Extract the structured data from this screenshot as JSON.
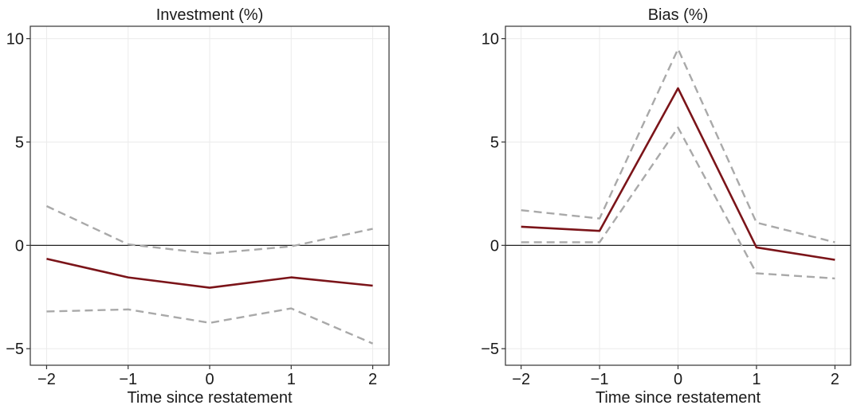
{
  "chart_data": [
    {
      "type": "line",
      "title": "Investment (%)",
      "xlabel": "Time since restatement",
      "ylabel": "",
      "x": [
        -2,
        -1,
        0,
        1,
        2
      ],
      "xlim": [
        -2.2,
        2.2
      ],
      "ylim": [
        -5.8,
        10.6
      ],
      "xticks": [
        -2,
        -1,
        0,
        1,
        2
      ],
      "yticks": [
        -5,
        0,
        5,
        10
      ],
      "grid": true,
      "reference_line_y": 0,
      "series": [
        {
          "role": "estimate",
          "style": "solid",
          "color": "#7b1419",
          "values": [
            -0.65,
            -1.55,
            -2.05,
            -1.55,
            -1.95
          ]
        },
        {
          "role": "upper",
          "style": "dashed",
          "color": "#a9a9a9",
          "values": [
            1.9,
            0.05,
            -0.4,
            -0.05,
            0.8
          ]
        },
        {
          "role": "lower",
          "style": "dashed",
          "color": "#a9a9a9",
          "values": [
            -3.2,
            -3.1,
            -3.75,
            -3.05,
            -4.75
          ]
        }
      ]
    },
    {
      "type": "line",
      "title": "Bias (%)",
      "xlabel": "Time since restatement",
      "ylabel": "",
      "x": [
        -2,
        -1,
        0,
        1,
        2
      ],
      "xlim": [
        -2.2,
        2.2
      ],
      "ylim": [
        -5.8,
        10.6
      ],
      "xticks": [
        -2,
        -1,
        0,
        1,
        2
      ],
      "yticks": [
        -5,
        0,
        5,
        10
      ],
      "grid": true,
      "reference_line_y": 0,
      "series": [
        {
          "role": "estimate",
          "style": "solid",
          "color": "#7b1419",
          "values": [
            0.9,
            0.7,
            7.6,
            -0.1,
            -0.7
          ]
        },
        {
          "role": "upper",
          "style": "dashed",
          "color": "#a9a9a9",
          "values": [
            1.7,
            1.3,
            9.5,
            1.1,
            0.15
          ]
        },
        {
          "role": "lower",
          "style": "dashed",
          "color": "#a9a9a9",
          "values": [
            0.15,
            0.15,
            5.7,
            -1.35,
            -1.6
          ]
        }
      ]
    }
  ]
}
